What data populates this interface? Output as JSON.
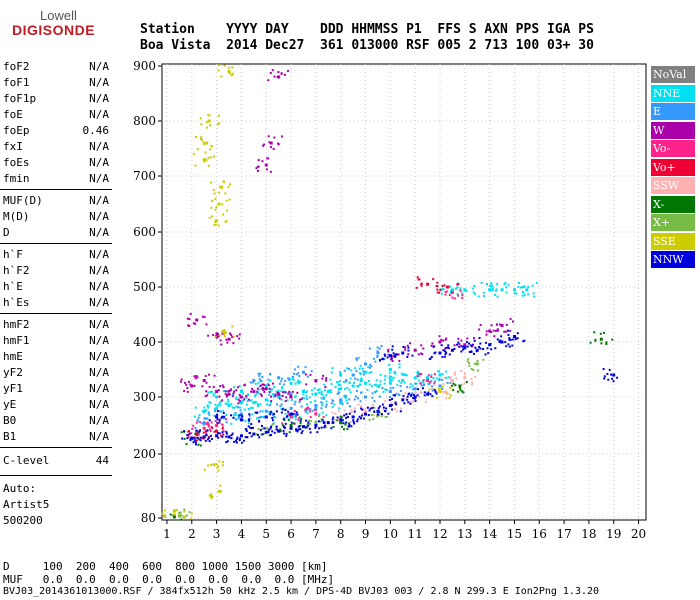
{
  "logo": {
    "line1": "Lowell",
    "line2": "DIGISONDE"
  },
  "header": {
    "line1": "Station    YYYY DAY    DDD HHMMSS P1  FFS S AXN PPS IGA PS",
    "line2": "Boa Vista  2014 Dec27  361 013000 RSF 005 2 713 100 03+ 30"
  },
  "params_group1": [
    {
      "k": "foF2",
      "v": "N/A"
    },
    {
      "k": "foF1",
      "v": "N/A"
    },
    {
      "k": "foF1p",
      "v": "N/A"
    },
    {
      "k": "foE",
      "v": "N/A"
    },
    {
      "k": "foEp",
      "v": "0.46"
    },
    {
      "k": "fxI",
      "v": "N/A"
    },
    {
      "k": "foEs",
      "v": "N/A"
    },
    {
      "k": "fmin",
      "v": "N/A"
    }
  ],
  "params_group2": [
    {
      "k": "MUF(D)",
      "v": "N/A"
    },
    {
      "k": "M(D)",
      "v": "N/A"
    },
    {
      "k": "D",
      "v": "N/A"
    }
  ],
  "params_group3": [
    {
      "k": "h`F",
      "v": "N/A"
    },
    {
      "k": "h`F2",
      "v": "N/A"
    },
    {
      "k": "h`E",
      "v": "N/A"
    },
    {
      "k": "h`Es",
      "v": "N/A"
    }
  ],
  "params_group4": [
    {
      "k": "hmF2",
      "v": "N/A"
    },
    {
      "k": "hmF1",
      "v": "N/A"
    },
    {
      "k": "hmE",
      "v": "N/A"
    },
    {
      "k": "yF2",
      "v": "N/A"
    },
    {
      "k": "yF1",
      "v": "N/A"
    },
    {
      "k": "yE",
      "v": "N/A"
    },
    {
      "k": "B0",
      "v": "N/A"
    },
    {
      "k": "B1",
      "v": "N/A"
    }
  ],
  "clevel": {
    "k": "C-level",
    "v": "44"
  },
  "notes": [
    "Auto:",
    "Artist5",
    "500200"
  ],
  "footer": {
    "line1": "D     100  200  400  600  800 1000 1500 3000 [km]",
    "line2": "MUF   0.0  0.0  0.0  0.0  0.0  0.0  0.0  0.0 [MHz]",
    "line3": "BVJ03_2014361013000.RSF / 384fx512h 50 kHz 2.5 km / DPS-4D BVJ03 003 / 2.8 N 299.3 E Ion2Png 1.3.20"
  },
  "legend": [
    {
      "label": "NoVal",
      "color": "#808080"
    },
    {
      "label": "NNE",
      "color": "#00e0f0"
    },
    {
      "label": "E",
      "color": "#3399ff"
    },
    {
      "label": "W",
      "color": "#aa00aa"
    },
    {
      "label": "Vo-",
      "color": "#ff2288"
    },
    {
      "label": "Vo+",
      "color": "#ee0033"
    },
    {
      "label": "SSW",
      "color": "#ffb0b0"
    },
    {
      "label": "X-",
      "color": "#007700"
    },
    {
      "label": "X+",
      "color": "#77bb44"
    },
    {
      "label": "SSE",
      "color": "#cccc00"
    },
    {
      "label": "NNW",
      "color": "#0000dd"
    }
  ],
  "chart_data": {
    "type": "scatter",
    "x_ticks": [
      1,
      2,
      3,
      4,
      5,
      6,
      7,
      8,
      9,
      10,
      11,
      12,
      13,
      14,
      15,
      16,
      17,
      18,
      19,
      20
    ],
    "y_ticks": [
      80,
      200,
      300,
      400,
      500,
      600,
      700,
      800,
      900
    ],
    "xlim": [
      0.8,
      20.3
    ],
    "ylim": [
      80,
      900
    ],
    "y_tick_positions_km": [
      [
        80,
        80
      ],
      [
        200,
        200
      ],
      [
        300,
        300
      ],
      [
        400,
        400
      ],
      [
        500,
        500
      ],
      [
        600,
        600
      ],
      [
        700,
        700
      ],
      [
        800,
        800
      ],
      [
        900,
        900
      ]
    ],
    "grid": true,
    "series": [
      {
        "name": "NNE",
        "color": "#00e0f0",
        "points": [
          [
            2.5,
            275
          ],
          [
            3,
            280
          ],
          [
            3.5,
            285
          ],
          [
            4,
            290
          ],
          [
            4.5,
            290
          ],
          [
            5,
            295
          ],
          [
            5.5,
            300
          ],
          [
            6,
            305
          ],
          [
            6.5,
            310
          ],
          [
            7,
            305
          ],
          [
            7.5,
            310
          ],
          [
            8,
            315
          ],
          [
            8.5,
            320
          ],
          [
            9,
            325
          ],
          [
            9.5,
            320
          ],
          [
            10,
            325
          ],
          [
            10.5,
            330
          ],
          [
            11,
            335
          ],
          [
            11.5,
            335
          ],
          [
            12,
            340
          ],
          [
            12.5,
            495
          ],
          [
            13,
            495
          ],
          [
            14,
            495
          ],
          [
            14.5,
            495
          ],
          [
            15,
            495
          ],
          [
            15.5,
            495
          ],
          [
            4,
            260
          ],
          [
            5,
            265
          ],
          [
            6,
            270
          ],
          [
            7,
            280
          ],
          [
            8,
            290
          ],
          [
            3,
            300
          ],
          [
            4,
            310
          ],
          [
            5,
            320
          ],
          [
            6,
            325
          ],
          [
            8,
            340
          ],
          [
            9,
            345
          ],
          [
            10,
            350
          ]
        ]
      },
      {
        "name": "E",
        "color": "#3399ff",
        "points": [
          [
            2.5,
            255
          ],
          [
            3,
            265
          ],
          [
            4,
            270
          ],
          [
            5,
            275
          ],
          [
            6,
            280
          ],
          [
            7,
            285
          ],
          [
            8,
            295
          ],
          [
            9,
            300
          ],
          [
            10,
            310
          ],
          [
            11,
            315
          ],
          [
            12,
            320
          ],
          [
            8.5,
            340
          ],
          [
            9,
            360
          ],
          [
            9.5,
            380
          ],
          [
            4.5,
            330
          ],
          [
            5.5,
            335
          ],
          [
            6.5,
            345
          ]
        ]
      },
      {
        "name": "W",
        "color": "#aa00aa",
        "points": [
          [
            2,
            320
          ],
          [
            2.5,
            330
          ],
          [
            3,
            310
          ],
          [
            3.5,
            305
          ],
          [
            4,
            300
          ],
          [
            4.5,
            310
          ],
          [
            5,
            315
          ],
          [
            5.5,
            305
          ],
          [
            6,
            300
          ],
          [
            3,
            410
          ],
          [
            3.5,
            405
          ],
          [
            5,
            720
          ],
          [
            5.2,
            760
          ],
          [
            5.5,
            880
          ],
          [
            7,
            330
          ],
          [
            10,
            375
          ],
          [
            11,
            385
          ],
          [
            12,
            400
          ],
          [
            13,
            395
          ],
          [
            14,
            420
          ],
          [
            14.5,
            430
          ],
          [
            2.2,
            440
          ]
        ]
      },
      {
        "name": "Vo-",
        "color": "#ff2288",
        "points": [
          [
            2.2,
            240
          ],
          [
            2.5,
            245
          ],
          [
            3,
            250
          ],
          [
            12.5,
            490
          ],
          [
            11.5,
            330
          ],
          [
            6,
            265
          ],
          [
            7,
            270
          ]
        ]
      },
      {
        "name": "Vo+",
        "color": "#ee0033",
        "points": [
          [
            2.2,
            235
          ],
          [
            3,
            240
          ],
          [
            11.5,
            505
          ],
          [
            12.3,
            500
          ]
        ]
      },
      {
        "name": "SSW",
        "color": "#ffb0b0",
        "points": [
          [
            8,
            265
          ],
          [
            9,
            275
          ],
          [
            10,
            285
          ],
          [
            11,
            300
          ],
          [
            12,
            310
          ],
          [
            12.5,
            330
          ],
          [
            13,
            335
          ]
        ]
      },
      {
        "name": "X-",
        "color": "#007700",
        "points": [
          [
            2,
            227
          ],
          [
            6,
            250
          ],
          [
            8,
            255
          ],
          [
            18.5,
            405
          ],
          [
            12.8,
            320
          ],
          [
            1.3,
            82
          ]
        ]
      },
      {
        "name": "X+",
        "color": "#77bb44",
        "points": [
          [
            5,
            245
          ],
          [
            7,
            255
          ],
          [
            9.5,
            270
          ],
          [
            13.5,
            360
          ],
          [
            1.5,
            84
          ]
        ]
      },
      {
        "name": "SSE",
        "color": "#cccc00",
        "points": [
          [
            2.5,
            730
          ],
          [
            2.6,
            760
          ],
          [
            2.7,
            800
          ],
          [
            3,
            620
          ],
          [
            3.1,
            650
          ],
          [
            3.2,
            680
          ],
          [
            3.3,
            420
          ],
          [
            3.5,
            890
          ],
          [
            2.9,
            180
          ],
          [
            3.1,
            130
          ],
          [
            0.9,
            83
          ],
          [
            1.7,
            82
          ],
          [
            12,
            310
          ]
        ]
      },
      {
        "name": "NNW",
        "color": "#0000dd",
        "points": [
          [
            2,
            228
          ],
          [
            2.5,
            230
          ],
          [
            3,
            232
          ],
          [
            3.5,
            230
          ],
          [
            4,
            232
          ],
          [
            4.5,
            235
          ],
          [
            5,
            238
          ],
          [
            5.5,
            240
          ],
          [
            6,
            245
          ],
          [
            6.5,
            248
          ],
          [
            7,
            250
          ],
          [
            7.5,
            255
          ],
          [
            8,
            260
          ],
          [
            8.5,
            265
          ],
          [
            9,
            270
          ],
          [
            9.5,
            275
          ],
          [
            10,
            285
          ],
          [
            10.5,
            295
          ],
          [
            11,
            300
          ],
          [
            11.5,
            305
          ],
          [
            12,
            380
          ],
          [
            12.5,
            385
          ],
          [
            13,
            390
          ],
          [
            13.5,
            385
          ],
          [
            14,
            395
          ],
          [
            14.5,
            400
          ],
          [
            15,
            410
          ],
          [
            10,
            375
          ],
          [
            10.5,
            380
          ],
          [
            3,
            265
          ],
          [
            4,
            260
          ],
          [
            5,
            265
          ],
          [
            6,
            270
          ],
          [
            19,
            340
          ]
        ]
      }
    ]
  }
}
